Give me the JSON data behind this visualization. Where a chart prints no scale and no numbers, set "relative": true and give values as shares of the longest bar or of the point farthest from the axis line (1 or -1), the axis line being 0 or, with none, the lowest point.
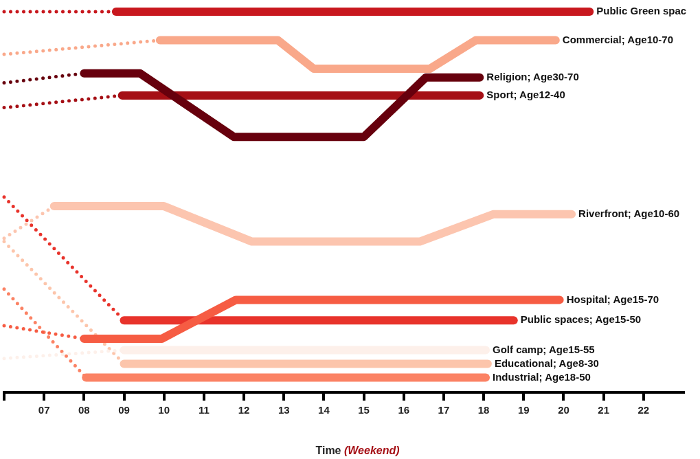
{
  "chart_data": {
    "type": "line",
    "xlabel": "Time",
    "annotations": [
      "(Weekend)"
    ],
    "relative": true,
    "xlim": [
      6,
      23
    ],
    "xticks": [
      {
        "value": 6,
        "label": null
      },
      {
        "value": 7,
        "label": "07"
      },
      {
        "value": 8,
        "label": "08"
      },
      {
        "value": 9,
        "label": "09"
      },
      {
        "value": 10,
        "label": "10"
      },
      {
        "value": 11,
        "label": "11"
      },
      {
        "value": 12,
        "label": "12"
      },
      {
        "value": 13,
        "label": "13"
      },
      {
        "value": 14,
        "label": "14"
      },
      {
        "value": 15,
        "label": "15"
      },
      {
        "value": 16,
        "label": "16"
      },
      {
        "value": 17,
        "label": "17"
      },
      {
        "value": 18,
        "label": "18"
      },
      {
        "value": 19,
        "label": "19"
      },
      {
        "value": 20,
        "label": "20"
      },
      {
        "value": 21,
        "label": "21"
      },
      {
        "value": 22,
        "label": "22"
      }
    ],
    "grid": false,
    "legend": false,
    "tick_labels": "x",
    "marker": "none",
    "series": [
      {
        "color": "#c8181e",
        "line_style": "dotted",
        "x": [
          6,
          8.8
        ],
        "values": [
          1,
          1
        ]
      },
      {
        "name": "Public Green spac",
        "color": "#c8181e",
        "line_style": "solid",
        "x": [
          8.8,
          20.65
        ],
        "values": [
          1,
          1
        ]
      },
      {
        "color": "#f9a88a",
        "line_style": "dotted",
        "x": [
          6,
          9.9
        ],
        "values": [
          0.888,
          0.925
        ]
      },
      {
        "name": "Commercial; Age10-70",
        "color": "#f9a88a",
        "line_style": "solid",
        "x": [
          9.9,
          12.85,
          13.75,
          16.65,
          17.8,
          19.8
        ],
        "values": [
          0.925,
          0.925,
          0.85,
          0.85,
          0.925,
          0.925
        ]
      },
      {
        "color": "#67000d",
        "line_style": "dotted",
        "x": [
          6,
          8
        ],
        "values": [
          0.813,
          0.838
        ]
      },
      {
        "name": "Religion; Age30-70",
        "color": "#67000d",
        "line_style": "solid",
        "x": [
          8,
          9.4,
          11.75,
          15,
          16.55,
          17.9
        ],
        "values": [
          0.838,
          0.838,
          0.671,
          0.671,
          0.827,
          0.827
        ]
      },
      {
        "color": "#a50f15",
        "line_style": "dotted",
        "x": [
          6,
          8.95
        ],
        "values": [
          0.748,
          0.78
        ]
      },
      {
        "name": "Sport; Age12-40",
        "color": "#a50f15",
        "line_style": "solid",
        "x": [
          8.95,
          17.9
        ],
        "values": [
          0.78,
          0.78
        ]
      },
      {
        "color": "#fcc5af",
        "line_style": "dotted",
        "x": [
          6,
          7.25
        ],
        "values": [
          0.405,
          0.489
        ]
      },
      {
        "name": "Riverfront; Age10-60",
        "color": "#fcc5af",
        "line_style": "solid",
        "x": [
          7.25,
          10,
          12.2,
          16.4,
          18.25,
          20.2
        ],
        "values": [
          0.489,
          0.489,
          0.396,
          0.396,
          0.468,
          0.468
        ]
      },
      {
        "color": "#f65c43",
        "line_style": "dotted",
        "x": [
          6,
          8
        ],
        "values": [
          0.175,
          0.141
        ]
      },
      {
        "name": "Hospital; Age15-70",
        "color": "#f65c43",
        "line_style": "solid",
        "x": [
          8,
          9.95,
          11.8,
          19.9
        ],
        "values": [
          0.141,
          0.141,
          0.243,
          0.243
        ]
      },
      {
        "color": "#e8332b",
        "line_style": "dotted",
        "x": [
          6,
          9
        ],
        "values": [
          0.513,
          0.189
        ]
      },
      {
        "name": "Public spaces; Age15-50",
        "color": "#e8332b",
        "line_style": "solid",
        "x": [
          9,
          18.75
        ],
        "values": [
          0.189,
          0.189
        ]
      },
      {
        "color": "#fdf0ea",
        "line_style": "dotted",
        "x": [
          6,
          9
        ],
        "values": [
          0.089,
          0.111
        ]
      },
      {
        "name": "Golf camp; Age15-55",
        "color": "#fdf0ea",
        "line_style": "solid",
        "x": [
          9,
          18.05
        ],
        "values": [
          0.111,
          0.111
        ]
      },
      {
        "color": "#fcc5ab",
        "line_style": "dotted",
        "x": [
          6,
          9
        ],
        "values": [
          0.396,
          0.075
        ]
      },
      {
        "name": "Educational; Age8-30",
        "color": "#fcc5ab",
        "line_style": "solid",
        "x": [
          9,
          18.1
        ],
        "values": [
          0.075,
          0.075
        ]
      },
      {
        "color": "#fb8264",
        "line_style": "dotted",
        "x": [
          6,
          8.05
        ],
        "values": [
          0.271,
          0.039
        ]
      },
      {
        "name": "Industrial; Age18-50",
        "color": "#fb8264",
        "line_style": "solid",
        "x": [
          8.05,
          18.05
        ],
        "values": [
          0.039,
          0.039
        ]
      }
    ]
  }
}
